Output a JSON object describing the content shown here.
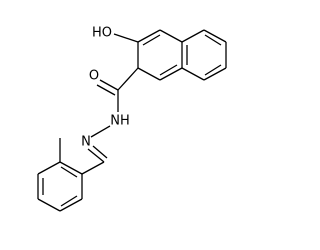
{
  "labels": [
    "HO",
    "O",
    "NH",
    "N"
  ]
}
